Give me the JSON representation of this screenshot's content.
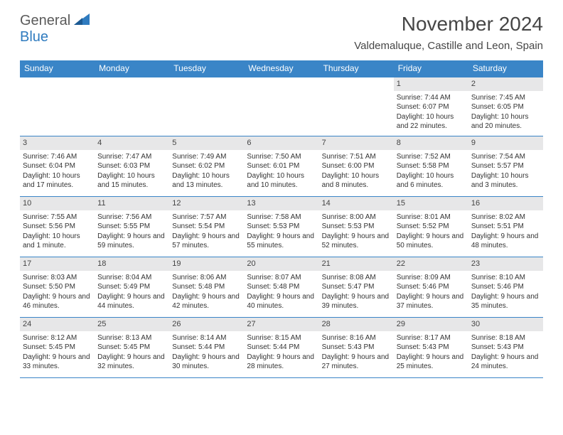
{
  "brand": {
    "part1": "General",
    "part2": "Blue"
  },
  "title": "November 2024",
  "location": "Valdemaluque, Castille and Leon, Spain",
  "colors": {
    "header_bg": "#3a85c7",
    "header_text": "#ffffff",
    "daynum_bg": "#e7e7e8",
    "border": "#3a85c7",
    "text": "#333333",
    "title_text": "#464646"
  },
  "layout": {
    "columns": 7,
    "rows": 5
  },
  "day_names": [
    "Sunday",
    "Monday",
    "Tuesday",
    "Wednesday",
    "Thursday",
    "Friday",
    "Saturday"
  ],
  "weeks": [
    [
      {
        "n": "",
        "sunrise": "",
        "sunset": "",
        "daylight": ""
      },
      {
        "n": "",
        "sunrise": "",
        "sunset": "",
        "daylight": ""
      },
      {
        "n": "",
        "sunrise": "",
        "sunset": "",
        "daylight": ""
      },
      {
        "n": "",
        "sunrise": "",
        "sunset": "",
        "daylight": ""
      },
      {
        "n": "",
        "sunrise": "",
        "sunset": "",
        "daylight": ""
      },
      {
        "n": "1",
        "sunrise": "Sunrise: 7:44 AM",
        "sunset": "Sunset: 6:07 PM",
        "daylight": "Daylight: 10 hours and 22 minutes."
      },
      {
        "n": "2",
        "sunrise": "Sunrise: 7:45 AM",
        "sunset": "Sunset: 6:05 PM",
        "daylight": "Daylight: 10 hours and 20 minutes."
      }
    ],
    [
      {
        "n": "3",
        "sunrise": "Sunrise: 7:46 AM",
        "sunset": "Sunset: 6:04 PM",
        "daylight": "Daylight: 10 hours and 17 minutes."
      },
      {
        "n": "4",
        "sunrise": "Sunrise: 7:47 AM",
        "sunset": "Sunset: 6:03 PM",
        "daylight": "Daylight: 10 hours and 15 minutes."
      },
      {
        "n": "5",
        "sunrise": "Sunrise: 7:49 AM",
        "sunset": "Sunset: 6:02 PM",
        "daylight": "Daylight: 10 hours and 13 minutes."
      },
      {
        "n": "6",
        "sunrise": "Sunrise: 7:50 AM",
        "sunset": "Sunset: 6:01 PM",
        "daylight": "Daylight: 10 hours and 10 minutes."
      },
      {
        "n": "7",
        "sunrise": "Sunrise: 7:51 AM",
        "sunset": "Sunset: 6:00 PM",
        "daylight": "Daylight: 10 hours and 8 minutes."
      },
      {
        "n": "8",
        "sunrise": "Sunrise: 7:52 AM",
        "sunset": "Sunset: 5:58 PM",
        "daylight": "Daylight: 10 hours and 6 minutes."
      },
      {
        "n": "9",
        "sunrise": "Sunrise: 7:54 AM",
        "sunset": "Sunset: 5:57 PM",
        "daylight": "Daylight: 10 hours and 3 minutes."
      }
    ],
    [
      {
        "n": "10",
        "sunrise": "Sunrise: 7:55 AM",
        "sunset": "Sunset: 5:56 PM",
        "daylight": "Daylight: 10 hours and 1 minute."
      },
      {
        "n": "11",
        "sunrise": "Sunrise: 7:56 AM",
        "sunset": "Sunset: 5:55 PM",
        "daylight": "Daylight: 9 hours and 59 minutes."
      },
      {
        "n": "12",
        "sunrise": "Sunrise: 7:57 AM",
        "sunset": "Sunset: 5:54 PM",
        "daylight": "Daylight: 9 hours and 57 minutes."
      },
      {
        "n": "13",
        "sunrise": "Sunrise: 7:58 AM",
        "sunset": "Sunset: 5:53 PM",
        "daylight": "Daylight: 9 hours and 55 minutes."
      },
      {
        "n": "14",
        "sunrise": "Sunrise: 8:00 AM",
        "sunset": "Sunset: 5:53 PM",
        "daylight": "Daylight: 9 hours and 52 minutes."
      },
      {
        "n": "15",
        "sunrise": "Sunrise: 8:01 AM",
        "sunset": "Sunset: 5:52 PM",
        "daylight": "Daylight: 9 hours and 50 minutes."
      },
      {
        "n": "16",
        "sunrise": "Sunrise: 8:02 AM",
        "sunset": "Sunset: 5:51 PM",
        "daylight": "Daylight: 9 hours and 48 minutes."
      }
    ],
    [
      {
        "n": "17",
        "sunrise": "Sunrise: 8:03 AM",
        "sunset": "Sunset: 5:50 PM",
        "daylight": "Daylight: 9 hours and 46 minutes."
      },
      {
        "n": "18",
        "sunrise": "Sunrise: 8:04 AM",
        "sunset": "Sunset: 5:49 PM",
        "daylight": "Daylight: 9 hours and 44 minutes."
      },
      {
        "n": "19",
        "sunrise": "Sunrise: 8:06 AM",
        "sunset": "Sunset: 5:48 PM",
        "daylight": "Daylight: 9 hours and 42 minutes."
      },
      {
        "n": "20",
        "sunrise": "Sunrise: 8:07 AM",
        "sunset": "Sunset: 5:48 PM",
        "daylight": "Daylight: 9 hours and 40 minutes."
      },
      {
        "n": "21",
        "sunrise": "Sunrise: 8:08 AM",
        "sunset": "Sunset: 5:47 PM",
        "daylight": "Daylight: 9 hours and 39 minutes."
      },
      {
        "n": "22",
        "sunrise": "Sunrise: 8:09 AM",
        "sunset": "Sunset: 5:46 PM",
        "daylight": "Daylight: 9 hours and 37 minutes."
      },
      {
        "n": "23",
        "sunrise": "Sunrise: 8:10 AM",
        "sunset": "Sunset: 5:46 PM",
        "daylight": "Daylight: 9 hours and 35 minutes."
      }
    ],
    [
      {
        "n": "24",
        "sunrise": "Sunrise: 8:12 AM",
        "sunset": "Sunset: 5:45 PM",
        "daylight": "Daylight: 9 hours and 33 minutes."
      },
      {
        "n": "25",
        "sunrise": "Sunrise: 8:13 AM",
        "sunset": "Sunset: 5:45 PM",
        "daylight": "Daylight: 9 hours and 32 minutes."
      },
      {
        "n": "26",
        "sunrise": "Sunrise: 8:14 AM",
        "sunset": "Sunset: 5:44 PM",
        "daylight": "Daylight: 9 hours and 30 minutes."
      },
      {
        "n": "27",
        "sunrise": "Sunrise: 8:15 AM",
        "sunset": "Sunset: 5:44 PM",
        "daylight": "Daylight: 9 hours and 28 minutes."
      },
      {
        "n": "28",
        "sunrise": "Sunrise: 8:16 AM",
        "sunset": "Sunset: 5:43 PM",
        "daylight": "Daylight: 9 hours and 27 minutes."
      },
      {
        "n": "29",
        "sunrise": "Sunrise: 8:17 AM",
        "sunset": "Sunset: 5:43 PM",
        "daylight": "Daylight: 9 hours and 25 minutes."
      },
      {
        "n": "30",
        "sunrise": "Sunrise: 8:18 AM",
        "sunset": "Sunset: 5:43 PM",
        "daylight": "Daylight: 9 hours and 24 minutes."
      }
    ]
  ]
}
